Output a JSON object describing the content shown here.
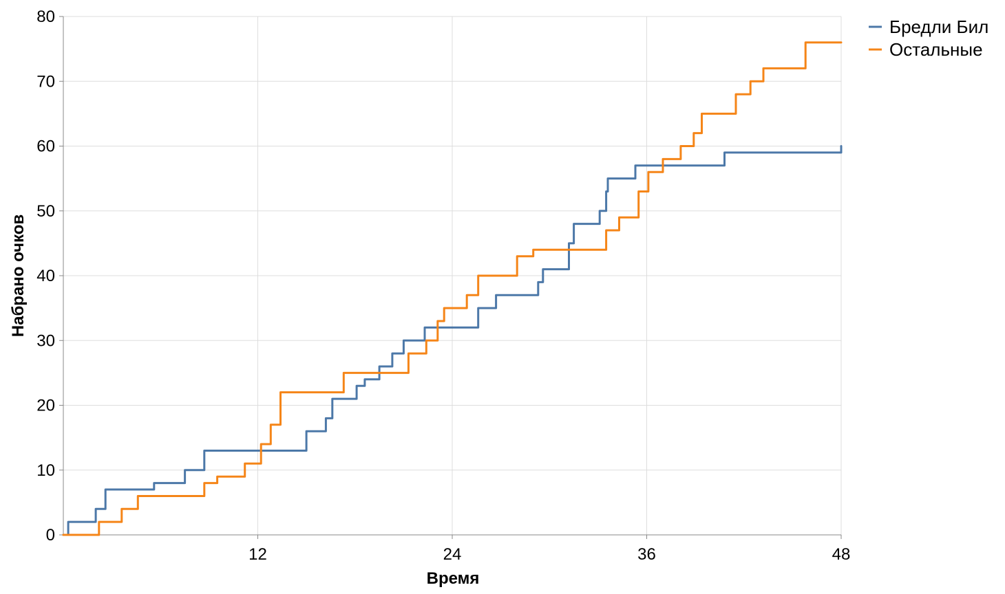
{
  "chart_data": {
    "type": "line",
    "interpolation": "step",
    "xlabel": "Время",
    "ylabel": "Набрано очков",
    "xlim": [
      0,
      48
    ],
    "ylim": [
      0,
      80
    ],
    "xticks": [
      12,
      24,
      36,
      48
    ],
    "yticks": [
      0,
      10,
      20,
      30,
      40,
      50,
      60,
      70,
      80
    ],
    "grid": true,
    "legend_position": "top-right",
    "series": [
      {
        "name": "Бредли Бил",
        "color": "#4c78a8",
        "points": [
          [
            0,
            0
          ],
          [
            0.3,
            2
          ],
          [
            2,
            4
          ],
          [
            2.6,
            7
          ],
          [
            5.6,
            8
          ],
          [
            7.5,
            10
          ],
          [
            8.7,
            13
          ],
          [
            15,
            16
          ],
          [
            16.2,
            18
          ],
          [
            16.6,
            21
          ],
          [
            18.1,
            23
          ],
          [
            18.6,
            24
          ],
          [
            19.5,
            26
          ],
          [
            20.3,
            28
          ],
          [
            21,
            30
          ],
          [
            22.3,
            32
          ],
          [
            25.6,
            35
          ],
          [
            26.7,
            37
          ],
          [
            29.3,
            39
          ],
          [
            29.6,
            41
          ],
          [
            31.2,
            45
          ],
          [
            31.5,
            48
          ],
          [
            33.1,
            50
          ],
          [
            33.5,
            53
          ],
          [
            33.6,
            55
          ],
          [
            35.3,
            57
          ],
          [
            40.8,
            59
          ],
          [
            48,
            59
          ],
          [
            48,
            60
          ]
        ]
      },
      {
        "name": "Остальные",
        "color": "#f58518",
        "points": [
          [
            0,
            0
          ],
          [
            2.2,
            2
          ],
          [
            3.6,
            4
          ],
          [
            4.6,
            6
          ],
          [
            8.7,
            8
          ],
          [
            9.5,
            9
          ],
          [
            11.2,
            11
          ],
          [
            12.2,
            14
          ],
          [
            12.8,
            17
          ],
          [
            13.4,
            22
          ],
          [
            17.3,
            25
          ],
          [
            21.3,
            28
          ],
          [
            22.4,
            30
          ],
          [
            23.1,
            33
          ],
          [
            23.5,
            35
          ],
          [
            24.9,
            37
          ],
          [
            25.6,
            40
          ],
          [
            28,
            43
          ],
          [
            29,
            44
          ],
          [
            33.5,
            47
          ],
          [
            34.3,
            49
          ],
          [
            35.5,
            53
          ],
          [
            36.1,
            56
          ],
          [
            37,
            58
          ],
          [
            38.1,
            60
          ],
          [
            38.9,
            62
          ],
          [
            39.4,
            65
          ],
          [
            41.5,
            68
          ],
          [
            42.4,
            70
          ],
          [
            43.2,
            72
          ],
          [
            45.8,
            76
          ],
          [
            48,
            76
          ]
        ]
      }
    ]
  }
}
